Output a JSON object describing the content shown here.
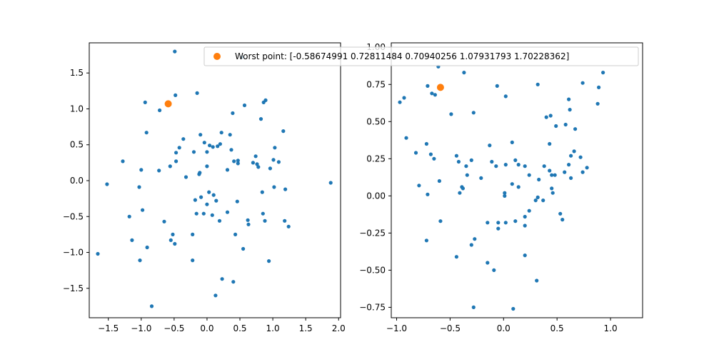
{
  "figure": {
    "background": "#ffffff"
  },
  "chart_data": [
    {
      "type": "scatter",
      "title": "",
      "xlabel": "",
      "ylabel": "",
      "xlim": [
        -1.79,
        2.03
      ],
      "ylim": [
        -1.91,
        1.92
      ],
      "xticks": [
        -1.5,
        -1.0,
        -0.5,
        0.0,
        0.5,
        1.0,
        1.5,
        2.0
      ],
      "xtick_labels": [
        "−1.5",
        "−1.0",
        "−0.5",
        "0.0",
        "0.5",
        "1.0",
        "1.5",
        "2.0"
      ],
      "yticks": [
        -1.5,
        -1.0,
        -0.5,
        0.0,
        0.5,
        1.0,
        1.5
      ],
      "ytick_labels": [
        "−1.5",
        "−1.0",
        "−0.5",
        "0.0",
        "0.5",
        "1.0",
        "1.5"
      ],
      "grid": false,
      "series": [
        {
          "color": "#1f77b4",
          "marker": "point",
          "points": [
            [
              -0.49,
              1.8
            ],
            [
              -0.15,
              1.22
            ],
            [
              -0.48,
              1.19
            ],
            [
              -0.94,
              1.09
            ],
            [
              -0.72,
              0.98
            ],
            [
              -0.92,
              0.67
            ],
            [
              -0.2,
              0.4
            ],
            [
              -0.36,
              0.58
            ],
            [
              -0.42,
              0.46
            ],
            [
              -0.1,
              0.64
            ],
            [
              -0.04,
              0.53
            ],
            [
              0.0,
              0.4
            ],
            [
              0.04,
              0.49
            ],
            [
              0.09,
              0.47
            ],
            [
              0.16,
              0.48
            ],
            [
              0.2,
              0.51
            ],
            [
              0.22,
              0.67
            ],
            [
              0.35,
              0.64
            ],
            [
              0.37,
              0.43
            ],
            [
              0.39,
              0.94
            ],
            [
              0.57,
              1.05
            ],
            [
              0.82,
              0.86
            ],
            [
              0.86,
              1.09
            ],
            [
              0.89,
              1.12
            ],
            [
              1.16,
              0.69
            ],
            [
              1.03,
              0.46
            ],
            [
              1.09,
              0.26
            ],
            [
              1.01,
              0.29
            ],
            [
              0.96,
              0.17
            ],
            [
              0.74,
              0.34
            ],
            [
              0.76,
              0.23
            ],
            [
              0.78,
              0.19
            ],
            [
              0.7,
              0.25
            ],
            [
              0.47,
              0.24
            ],
            [
              0.41,
              0.27
            ],
            [
              0.47,
              0.28
            ],
            [
              0.31,
              0.15
            ],
            [
              0.0,
              0.2
            ],
            [
              -0.12,
              0.09
            ],
            [
              -0.11,
              0.11
            ],
            [
              -0.32,
              0.05
            ],
            [
              -0.47,
              0.27
            ],
            [
              -0.47,
              0.39
            ],
            [
              -0.56,
              0.2
            ],
            [
              -0.73,
              0.14
            ],
            [
              -1.28,
              0.27
            ],
            [
              -1.0,
              0.15
            ],
            [
              -1.52,
              -0.05
            ],
            [
              -1.03,
              -0.09
            ],
            [
              -0.98,
              -0.41
            ],
            [
              -1.18,
              -0.5
            ],
            [
              -1.14,
              -0.83
            ],
            [
              -1.02,
              -1.11
            ],
            [
              -1.66,
              -1.02
            ],
            [
              -0.91,
              -0.93
            ],
            [
              -0.84,
              -1.75
            ],
            [
              -0.65,
              -0.57
            ],
            [
              -0.52,
              -0.75
            ],
            [
              -0.55,
              -0.83
            ],
            [
              -0.49,
              -0.88
            ],
            [
              -0.22,
              -0.75
            ],
            [
              -0.22,
              -1.11
            ],
            [
              -0.18,
              -0.27
            ],
            [
              -0.16,
              -0.46
            ],
            [
              -0.09,
              -0.23
            ],
            [
              -0.05,
              -0.46
            ],
            [
              0.0,
              -0.33
            ],
            [
              0.03,
              -0.16
            ],
            [
              0.08,
              -0.48
            ],
            [
              0.1,
              -0.2
            ],
            [
              0.14,
              -0.28
            ],
            [
              0.19,
              -0.56
            ],
            [
              0.23,
              -1.37
            ],
            [
              0.13,
              -1.6
            ],
            [
              0.31,
              -0.44
            ],
            [
              0.4,
              -1.41
            ],
            [
              0.43,
              -0.75
            ],
            [
              0.46,
              -0.29
            ],
            [
              0.55,
              -0.95
            ],
            [
              0.62,
              -0.55
            ],
            [
              0.63,
              -0.61
            ],
            [
              0.85,
              -0.46
            ],
            [
              0.88,
              -0.56
            ],
            [
              0.94,
              -1.12
            ],
            [
              0.84,
              -0.16
            ],
            [
              1.02,
              -0.09
            ],
            [
              1.19,
              -0.12
            ],
            [
              1.18,
              -0.56
            ],
            [
              1.24,
              -0.64
            ],
            [
              1.88,
              -0.03
            ],
            [
              0.53,
              1.72
            ]
          ]
        },
        {
          "color": "#ff7f0e",
          "marker": "circle",
          "points": [
            [
              -0.59,
              1.07
            ]
          ]
        }
      ]
    },
    {
      "type": "scatter",
      "title": "",
      "xlabel": "",
      "ylabel": "",
      "xlim": [
        -1.05,
        1.3
      ],
      "ylim": [
        -0.82,
        1.03
      ],
      "xticks": [
        -1.0,
        -0.5,
        0.0,
        0.5,
        1.0
      ],
      "xtick_labels": [
        "−1.0",
        "−0.5",
        "0.0",
        "0.5",
        "1.0"
      ],
      "yticks": [
        -0.75,
        -0.5,
        -0.25,
        0.0,
        0.25,
        0.5,
        0.75,
        1.0
      ],
      "ytick_labels": [
        "−0.75",
        "−0.50",
        "−0.25",
        "0.00",
        "0.25",
        "0.50",
        "0.75",
        "1.00"
      ],
      "grid": false,
      "series": [
        {
          "color": "#1f77b4",
          "marker": "point",
          "points": [
            [
              -0.61,
              0.87
            ],
            [
              -0.37,
              0.83
            ],
            [
              -0.97,
              0.63
            ],
            [
              -0.93,
              0.66
            ],
            [
              -0.71,
              0.74
            ],
            [
              -0.67,
              0.69
            ],
            [
              -0.64,
              0.68
            ],
            [
              -0.91,
              0.39
            ],
            [
              -0.82,
              0.29
            ],
            [
              -0.72,
              0.35
            ],
            [
              -0.68,
              0.28
            ],
            [
              -0.65,
              0.25
            ],
            [
              -0.49,
              0.55
            ],
            [
              -0.28,
              0.56
            ],
            [
              -0.06,
              0.74
            ],
            [
              0.02,
              0.67
            ],
            [
              0.32,
              0.75
            ],
            [
              0.4,
              0.53
            ],
            [
              0.44,
              0.54
            ],
            [
              0.49,
              0.47
            ],
            [
              0.58,
              0.48
            ],
            [
              0.61,
              0.65
            ],
            [
              0.62,
              0.58
            ],
            [
              0.67,
              0.45
            ],
            [
              0.74,
              0.76
            ],
            [
              0.88,
              0.62
            ],
            [
              0.89,
              0.73
            ],
            [
              0.93,
              0.83
            ],
            [
              0.78,
              0.19
            ],
            [
              0.74,
              0.16
            ],
            [
              0.72,
              0.26
            ],
            [
              0.66,
              0.3
            ],
            [
              0.63,
              0.27
            ],
            [
              0.61,
              0.21
            ],
            [
              0.57,
              0.16
            ],
            [
              0.63,
              0.12
            ],
            [
              0.45,
              0.14
            ],
            [
              0.48,
              0.14
            ],
            [
              0.43,
              0.35
            ],
            [
              0.43,
              0.17
            ],
            [
              0.38,
              0.2
            ],
            [
              0.33,
              0.11
            ],
            [
              0.24,
              0.14
            ],
            [
              0.2,
              0.2
            ],
            [
              0.14,
              0.21
            ],
            [
              0.11,
              0.24
            ],
            [
              0.08,
              0.36
            ],
            [
              0.02,
              0.21
            ],
            [
              -0.07,
              0.2
            ],
            [
              -0.11,
              0.23
            ],
            [
              -0.13,
              0.34
            ],
            [
              -0.21,
              0.12
            ],
            [
              -0.3,
              0.24
            ],
            [
              -0.34,
              0.14
            ],
            [
              -0.42,
              0.23
            ],
            [
              -0.44,
              0.27
            ],
            [
              -0.35,
              0.2
            ],
            [
              -0.39,
              0.06
            ],
            [
              -0.38,
              0.05
            ],
            [
              -0.41,
              0.02
            ],
            [
              -0.6,
              0.1
            ],
            [
              -0.71,
              0.01
            ],
            [
              -0.79,
              0.07
            ],
            [
              -0.59,
              -0.17
            ],
            [
              -0.72,
              -0.3
            ],
            [
              -0.44,
              -0.41
            ],
            [
              -0.3,
              -0.33
            ],
            [
              -0.27,
              -0.29
            ],
            [
              -0.28,
              -0.75
            ],
            [
              -0.15,
              -0.18
            ],
            [
              -0.09,
              -0.5
            ],
            [
              -0.15,
              -0.45
            ],
            [
              -0.05,
              -0.18
            ],
            [
              -0.05,
              -0.22
            ],
            [
              0.01,
              0.0
            ],
            [
              0.01,
              0.02
            ],
            [
              0.08,
              0.08
            ],
            [
              0.14,
              0.06
            ],
            [
              0.2,
              -0.14
            ],
            [
              0.2,
              -0.2
            ],
            [
              0.11,
              -0.17
            ],
            [
              0.02,
              -0.18
            ],
            [
              0.24,
              -0.1
            ],
            [
              0.3,
              -0.03
            ],
            [
              0.32,
              -0.01
            ],
            [
              0.37,
              -0.03
            ],
            [
              0.46,
              0.02
            ],
            [
              0.45,
              0.05
            ],
            [
              0.53,
              -0.12
            ],
            [
              0.55,
              -0.16
            ],
            [
              0.2,
              -0.4
            ],
            [
              0.31,
              -0.57
            ],
            [
              0.09,
              -0.76
            ]
          ]
        },
        {
          "color": "#ff7f0e",
          "marker": "circle",
          "points": [
            [
              -0.59,
              0.73
            ]
          ]
        }
      ]
    }
  ],
  "legend": {
    "placement": "top-right",
    "marker_color": "#ff7f0e",
    "label": "Worst point: [-0.58674991  0.72811484  0.70940256  1.07931793  1.70228362]"
  }
}
